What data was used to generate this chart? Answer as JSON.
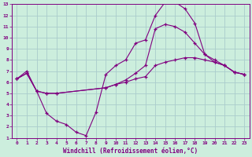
{
  "xlabel": "Windchill (Refroidissement éolien,°C)",
  "bg_color": "#cceedd",
  "grid_color": "#aacccc",
  "line_color": "#800080",
  "xlim": [
    -0.5,
    23.5
  ],
  "ylim": [
    1,
    13
  ],
  "xticks": [
    0,
    1,
    2,
    3,
    4,
    5,
    6,
    7,
    8,
    9,
    10,
    11,
    12,
    13,
    14,
    15,
    16,
    17,
    18,
    19,
    20,
    21,
    22,
    23
  ],
  "yticks": [
    1,
    2,
    3,
    4,
    5,
    6,
    7,
    8,
    9,
    10,
    11,
    12,
    13
  ],
  "line1_x": [
    0,
    1,
    2,
    3,
    4,
    5,
    6,
    7,
    8,
    9,
    10,
    11,
    12,
    13,
    14,
    15,
    16,
    17,
    18,
    19,
    20,
    21,
    22,
    23
  ],
  "line1_y": [
    6.3,
    7.0,
    5.2,
    3.2,
    2.5,
    2.2,
    1.5,
    1.2,
    3.3,
    6.7,
    7.5,
    8.0,
    9.5,
    9.8,
    12.0,
    13.2,
    13.2,
    12.6,
    11.3,
    8.5,
    7.8,
    7.5,
    6.9,
    6.7
  ],
  "line2_x": [
    0,
    1,
    2,
    3,
    4,
    9,
    10,
    11,
    12,
    13,
    14,
    15,
    16,
    17,
    18,
    19,
    20,
    21,
    22,
    23
  ],
  "line2_y": [
    6.3,
    6.8,
    5.2,
    5.0,
    5.0,
    5.5,
    5.8,
    6.0,
    6.3,
    6.5,
    7.5,
    7.8,
    8.0,
    8.2,
    8.2,
    8.0,
    7.8,
    7.5,
    6.9,
    6.7
  ],
  "line3_x": [
    0,
    1,
    2,
    3,
    4,
    9,
    10,
    11,
    12,
    13,
    14,
    15,
    16,
    17,
    18,
    19,
    20,
    21,
    22,
    23
  ],
  "line3_y": [
    6.3,
    6.8,
    5.2,
    5.0,
    5.0,
    5.5,
    5.8,
    6.2,
    6.8,
    7.5,
    10.8,
    11.2,
    11.0,
    10.5,
    9.5,
    8.5,
    8.0,
    7.5,
    6.9,
    6.7
  ],
  "marker": "+",
  "markersize": 3,
  "linewidth": 0.8,
  "tick_fontsize": 4.5,
  "xlabel_fontsize": 5.5
}
